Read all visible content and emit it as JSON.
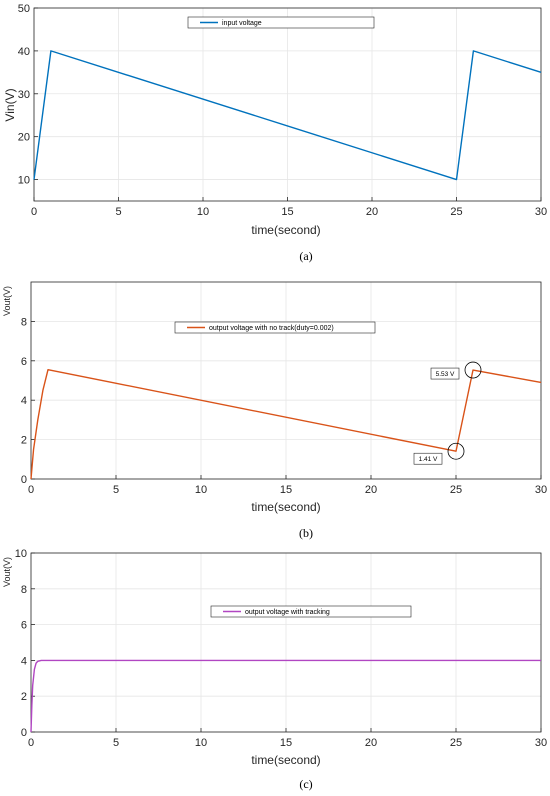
{
  "chart_data": [
    {
      "type": "line",
      "caption": "(a)",
      "xlabel": "time(second)",
      "ylabel": "Vin(V)",
      "xlim": [
        0,
        30
      ],
      "ylim": [
        5,
        50
      ],
      "xticks": [
        0,
        5,
        10,
        15,
        20,
        25,
        30
      ],
      "yticks": [
        10,
        20,
        30,
        40,
        50
      ],
      "grid": true,
      "legend_position": "top-center",
      "series": [
        {
          "name": "input voltage",
          "color": "#0072BD",
          "x": [
            0,
            1,
            25,
            26,
            30
          ],
          "y": [
            10,
            40,
            10,
            40,
            35
          ]
        }
      ],
      "annotations": []
    },
    {
      "type": "line",
      "caption": "(b)",
      "xlabel": "time(second)",
      "ylabel": "Vout(V)",
      "xlim": [
        0,
        30
      ],
      "ylim": [
        0,
        10
      ],
      "xticks": [
        0,
        5,
        10,
        15,
        20,
        25,
        30
      ],
      "yticks": [
        0,
        2,
        4,
        6,
        8
      ],
      "grid": true,
      "legend_position": "top-center",
      "series": [
        {
          "name": "output voltage with no track(duty=0.002)",
          "color": "#D95319",
          "x": [
            0,
            0.15,
            0.4,
            0.7,
            1,
            25,
            26,
            30
          ],
          "y": [
            0,
            1.5,
            3,
            4.5,
            5.55,
            1.41,
            5.53,
            4.9
          ]
        }
      ],
      "annotations": [
        {
          "text": "5.53 V",
          "x": 26,
          "y": 5.53
        },
        {
          "text": "1.41 V",
          "x": 25,
          "y": 1.41
        }
      ]
    },
    {
      "type": "line",
      "caption": "(c)",
      "xlabel": "time(second)",
      "ylabel": "Vout(V)",
      "xlim": [
        0,
        30
      ],
      "ylim": [
        0,
        10
      ],
      "xticks": [
        0,
        5,
        10,
        15,
        20,
        25,
        30
      ],
      "yticks": [
        0,
        2,
        4,
        6,
        8,
        10
      ],
      "grid": true,
      "legend_position": "top-center",
      "series": [
        {
          "name": "output voltage with tracking",
          "color": "#B146C2",
          "x": [
            0,
            0.05,
            0.1,
            0.2,
            0.3,
            0.4,
            0.6,
            0.8,
            1,
            30
          ],
          "y": [
            0,
            1.5,
            2.6,
            3.5,
            3.85,
            3.95,
            4,
            4,
            4,
            4
          ]
        }
      ],
      "annotations": []
    }
  ]
}
